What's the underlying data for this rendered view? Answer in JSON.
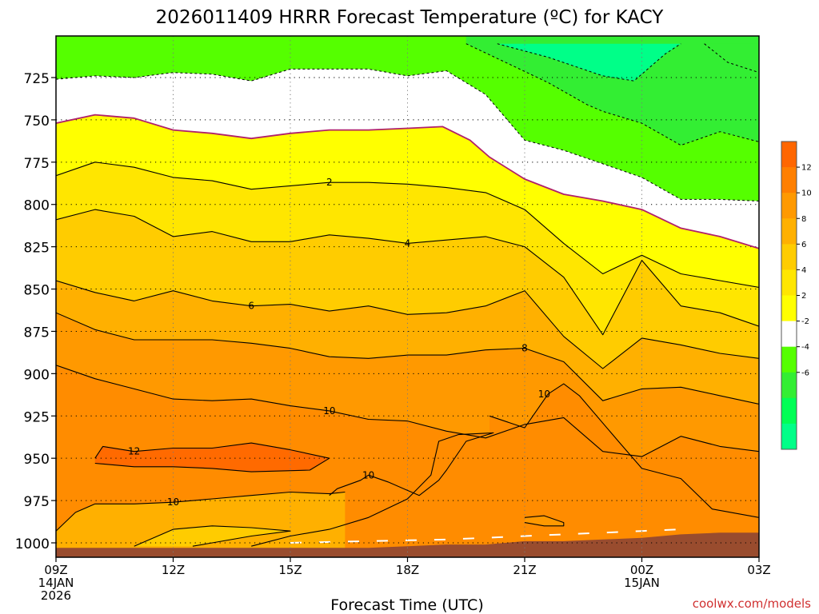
{
  "chart_data": {
    "type": "contour",
    "title": "2026011409 HRRR Forecast Temperature (ºC) for KACY",
    "xlabel": "Forecast Time (UTC)",
    "ylabel": "",
    "credit": "coolwx.com/models",
    "x_ticks": [
      {
        "hour": 0,
        "lines": [
          "09Z",
          "14JAN",
          "2026"
        ]
      },
      {
        "hour": 3,
        "lines": [
          "12Z"
        ]
      },
      {
        "hour": 6,
        "lines": [
          "15Z"
        ]
      },
      {
        "hour": 9,
        "lines": [
          "18Z"
        ]
      },
      {
        "hour": 12,
        "lines": [
          "21Z"
        ]
      },
      {
        "hour": 15,
        "lines": [
          "00Z",
          "15JAN"
        ]
      },
      {
        "hour": 18,
        "lines": [
          "03Z"
        ]
      }
    ],
    "xlim": [
      0,
      18
    ],
    "y_ticks": [
      725,
      750,
      775,
      800,
      825,
      850,
      875,
      900,
      925,
      950,
      975,
      1000
    ],
    "ylim": [
      1000,
      705
    ],
    "colorbar": {
      "labels": [
        "12",
        "10",
        "8",
        "6",
        "4",
        "2",
        "-2",
        "-4",
        "-6"
      ],
      "bands": [
        {
          "color": "#ff6600"
        },
        {
          "color": "#ff7f00"
        },
        {
          "color": "#ff9900"
        },
        {
          "color": "#ffb000"
        },
        {
          "color": "#ffcc00"
        },
        {
          "color": "#ffe600"
        },
        {
          "color": "#ffff00"
        },
        {
          "color": "#ffffff"
        },
        {
          "color": "#55ff00"
        },
        {
          "color": "#33ee33"
        },
        {
          "color": "#00ff55"
        },
        {
          "color": "#00ff88"
        }
      ]
    },
    "contour_levels": [
      -6,
      -4,
      -2,
      0,
      2,
      4,
      6,
      8,
      10,
      12
    ],
    "contours": [
      {
        "level": -6,
        "style": "dashed",
        "points": [
          [
            11.3,
            705
          ],
          [
            12.6,
            713
          ],
          [
            14,
            724
          ],
          [
            14.8,
            727
          ],
          [
            15.6,
            711
          ],
          [
            16,
            705
          ]
        ]
      },
      {
        "level": -6,
        "style": "dashed",
        "points": [
          [
            16.6,
            705
          ],
          [
            17.2,
            716
          ],
          [
            18,
            722
          ]
        ]
      },
      {
        "level": -4,
        "style": "dashed",
        "points": [
          [
            10.5,
            705
          ],
          [
            11.6,
            717
          ],
          [
            12.6,
            728
          ],
          [
            13.6,
            741
          ],
          [
            14,
            745
          ],
          [
            15,
            752
          ],
          [
            16,
            765
          ],
          [
            17,
            757
          ],
          [
            18,
            763
          ]
        ]
      },
      {
        "level": -2,
        "style": "dashed",
        "points": [
          [
            0,
            726
          ],
          [
            1,
            724
          ],
          [
            2,
            725
          ],
          [
            3,
            722
          ],
          [
            4,
            723
          ],
          [
            5,
            727
          ],
          [
            6,
            720
          ],
          [
            7,
            720
          ],
          [
            8,
            720
          ],
          [
            9,
            724
          ],
          [
            10,
            721
          ],
          [
            11,
            735
          ],
          [
            12,
            762
          ],
          [
            13,
            768
          ],
          [
            14,
            776
          ],
          [
            15,
            784
          ],
          [
            16,
            797
          ],
          [
            17,
            797
          ],
          [
            18,
            798
          ]
        ]
      },
      {
        "level": 0,
        "style": "magenta",
        "points": [
          [
            0,
            752
          ],
          [
            1,
            747
          ],
          [
            2,
            749
          ],
          [
            3,
            756
          ],
          [
            4,
            758
          ],
          [
            5,
            761
          ],
          [
            6,
            758
          ],
          [
            7,
            756
          ],
          [
            8,
            756
          ],
          [
            9,
            755
          ],
          [
            9.9,
            754
          ],
          [
            10.6,
            762
          ],
          [
            11.1,
            772
          ],
          [
            12,
            785
          ],
          [
            13,
            794
          ],
          [
            14,
            798
          ],
          [
            15,
            803
          ],
          [
            16,
            814
          ],
          [
            17,
            819
          ],
          [
            18,
            826
          ]
        ]
      },
      {
        "level": 2,
        "style": "solid",
        "label_at": 7,
        "points": [
          [
            0,
            783
          ],
          [
            1,
            775
          ],
          [
            2,
            778
          ],
          [
            3,
            784
          ],
          [
            4,
            786
          ],
          [
            5,
            791
          ],
          [
            6,
            789
          ],
          [
            7,
            787
          ],
          [
            8,
            787
          ],
          [
            9,
            788
          ],
          [
            10,
            790
          ],
          [
            11,
            793
          ],
          [
            12,
            803
          ],
          [
            13,
            823
          ],
          [
            14,
            841
          ],
          [
            15,
            830
          ],
          [
            16,
            841
          ],
          [
            17,
            845
          ],
          [
            18,
            849
          ]
        ]
      },
      {
        "level": 4,
        "style": "solid",
        "label_at": 9,
        "points": [
          [
            0,
            809
          ],
          [
            1,
            803
          ],
          [
            2,
            807
          ],
          [
            3,
            819
          ],
          [
            4,
            816
          ],
          [
            5,
            822
          ],
          [
            6,
            822
          ],
          [
            7,
            818
          ],
          [
            8,
            820
          ],
          [
            9,
            823
          ],
          [
            10,
            821
          ],
          [
            11,
            819
          ],
          [
            12,
            825
          ],
          [
            13,
            843
          ],
          [
            14,
            877
          ],
          [
            15,
            833
          ],
          [
            16,
            860
          ],
          [
            17,
            864
          ],
          [
            18,
            872
          ]
        ]
      },
      {
        "level": 6,
        "style": "solid",
        "label_at": 5,
        "points": [
          [
            0,
            845
          ],
          [
            1,
            852
          ],
          [
            2,
            857
          ],
          [
            3,
            851
          ],
          [
            4,
            857
          ],
          [
            5,
            860
          ],
          [
            6,
            859
          ],
          [
            7,
            863
          ],
          [
            8,
            860
          ],
          [
            9,
            865
          ],
          [
            10,
            864
          ],
          [
            11,
            860
          ],
          [
            12,
            851
          ],
          [
            13,
            878
          ],
          [
            14,
            897
          ],
          [
            15,
            879
          ],
          [
            16,
            883
          ],
          [
            17,
            888
          ],
          [
            18,
            891
          ]
        ]
      },
      {
        "level": 8,
        "style": "solid",
        "label_at": 12,
        "points": [
          [
            0,
            864
          ],
          [
            1,
            874
          ],
          [
            2,
            880
          ],
          [
            3,
            880
          ],
          [
            4,
            880
          ],
          [
            5,
            882
          ],
          [
            6,
            885
          ],
          [
            7,
            890
          ],
          [
            8,
            891
          ],
          [
            9,
            889
          ],
          [
            10,
            889
          ],
          [
            11,
            886
          ],
          [
            12,
            885
          ],
          [
            13,
            893
          ],
          [
            14,
            916
          ],
          [
            15,
            909
          ],
          [
            16,
            908
          ],
          [
            17,
            913
          ],
          [
            18,
            918
          ]
        ]
      },
      {
        "level": 10,
        "style": "solid",
        "label_at": 7,
        "points": [
          [
            0,
            895
          ],
          [
            1,
            903
          ],
          [
            2,
            909
          ],
          [
            3,
            915
          ],
          [
            4,
            916
          ],
          [
            5,
            915
          ],
          [
            6,
            919
          ],
          [
            7,
            922
          ],
          [
            8,
            927
          ],
          [
            9,
            928
          ],
          [
            10,
            934
          ],
          [
            11,
            938
          ],
          [
            12,
            930
          ],
          [
            13,
            926
          ],
          [
            14,
            946
          ],
          [
            15,
            949
          ],
          [
            16,
            937
          ],
          [
            17,
            943
          ],
          [
            18,
            946
          ]
        ]
      },
      {
        "level": 10,
        "style": "solid",
        "label_at": 12.5,
        "points": [
          [
            11.1,
            925
          ],
          [
            12,
            932
          ],
          [
            12.6,
            912
          ],
          [
            13,
            906
          ],
          [
            13.4,
            913
          ],
          [
            14.4,
            940
          ],
          [
            15,
            956
          ],
          [
            16,
            962
          ],
          [
            16.8,
            980
          ],
          [
            18,
            985
          ]
        ]
      },
      {
        "level": 10,
        "style": "solid",
        "label_at": 8,
        "points": [
          [
            7,
            972
          ],
          [
            7.2,
            968
          ],
          [
            7.8,
            963
          ],
          [
            8,
            960
          ],
          [
            8.5,
            964
          ],
          [
            9,
            969
          ],
          [
            9.3,
            972
          ],
          [
            9.8,
            963
          ],
          [
            10,
            957
          ],
          [
            10.5,
            940
          ],
          [
            11.2,
            935
          ],
          [
            10.3,
            936
          ],
          [
            9.8,
            940
          ],
          [
            9.6,
            960
          ],
          [
            9,
            974
          ],
          [
            8,
            985
          ],
          [
            7,
            992
          ],
          [
            6,
            996
          ],
          [
            5,
            1002
          ]
        ]
      },
      {
        "level": 10,
        "style": "solid",
        "label_at": 3,
        "points": [
          [
            0,
            993
          ],
          [
            0.5,
            982
          ],
          [
            1,
            977
          ],
          [
            2,
            977
          ],
          [
            3,
            976
          ],
          [
            4,
            974
          ],
          [
            5,
            972
          ],
          [
            6,
            970
          ],
          [
            7,
            971
          ],
          [
            7.4,
            970
          ]
        ]
      },
      {
        "level": 12,
        "style": "solid",
        "label_at": 2,
        "points": [
          [
            1,
            950
          ],
          [
            1.2,
            943
          ],
          [
            2,
            946
          ],
          [
            3,
            944
          ],
          [
            4,
            944
          ],
          [
            5,
            941
          ],
          [
            6,
            945
          ],
          [
            7,
            950
          ],
          [
            6.5,
            957
          ],
          [
            5,
            958
          ],
          [
            4,
            956
          ],
          [
            3,
            955
          ],
          [
            2,
            955
          ],
          [
            1,
            953
          ]
        ]
      },
      {
        "level": 10,
        "style": "solid",
        "label_at": -1,
        "points": [
          [
            12,
            985
          ],
          [
            12.5,
            984
          ],
          [
            13,
            988
          ],
          [
            13,
            990
          ],
          [
            12.5,
            990
          ],
          [
            12,
            988
          ]
        ]
      },
      {
        "level": 8,
        "style": "solid",
        "label_at": -1,
        "points": [
          [
            2,
            1002
          ],
          [
            3,
            992
          ],
          [
            4,
            990
          ],
          [
            5,
            991
          ],
          [
            6,
            993
          ],
          [
            5,
            996
          ],
          [
            4,
            1000
          ],
          [
            3.5,
            1002
          ]
        ]
      }
    ],
    "surface": {
      "color": "#994c2e",
      "points": [
        [
          0,
          1003
        ],
        [
          2,
          1003
        ],
        [
          4,
          1003
        ],
        [
          6,
          1003
        ],
        [
          8,
          1003
        ],
        [
          9,
          1002
        ],
        [
          10,
          1001
        ],
        [
          11,
          1001
        ],
        [
          12,
          999
        ],
        [
          13,
          999
        ],
        [
          14,
          998
        ],
        [
          15,
          997
        ],
        [
          16,
          995
        ],
        [
          17,
          994
        ],
        [
          18,
          994
        ]
      ]
    },
    "surface_trace": [
      [
        6,
        1000
      ],
      [
        7,
        999.5
      ],
      [
        8,
        999
      ],
      [
        9,
        998.5
      ],
      [
        10,
        998
      ],
      [
        11,
        997
      ],
      [
        12,
        996
      ],
      [
        13,
        995
      ],
      [
        14,
        994
      ],
      [
        15,
        993
      ],
      [
        16,
        992
      ]
    ]
  }
}
